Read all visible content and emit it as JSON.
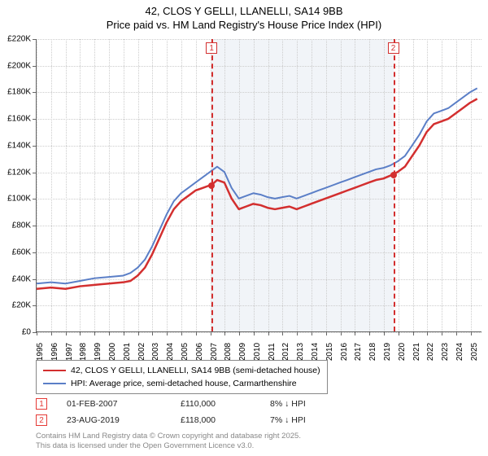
{
  "title": {
    "line1": "42, CLOS Y GELLI, LLANELLI, SA14 9BB",
    "line2": "Price paid vs. HM Land Registry's House Price Index (HPI)"
  },
  "chart": {
    "type": "line",
    "x_years": [
      1995,
      1996,
      1997,
      1998,
      1999,
      2000,
      2001,
      2002,
      2003,
      2004,
      2005,
      2006,
      2007,
      2008,
      2009,
      2010,
      2011,
      2012,
      2013,
      2014,
      2015,
      2016,
      2017,
      2018,
      2019,
      2020,
      2021,
      2022,
      2023,
      2024,
      2025
    ],
    "xlim": [
      1995,
      2025.8
    ],
    "ylim": [
      0,
      220000
    ],
    "ytick_step": 20000,
    "y_prefix": "£",
    "y_suffix": "K",
    "y_divisor": 1000,
    "background_color": "#ffffff",
    "grid_color": "#cccccc",
    "band_color": "#e8ecf4",
    "band": {
      "start": 2007.09,
      "end": 2019.65
    },
    "series": [
      {
        "name": "42, CLOS Y GELLI, LLANELLI, SA14 9BB (semi-detached house)",
        "color": "#d32f2f",
        "width": 2.5,
        "data": [
          [
            1995,
            32000
          ],
          [
            1996,
            33000
          ],
          [
            1997,
            32000
          ],
          [
            1998,
            34000
          ],
          [
            1999,
            35000
          ],
          [
            2000,
            36000
          ],
          [
            2001,
            37000
          ],
          [
            2001.5,
            38000
          ],
          [
            2002,
            42000
          ],
          [
            2002.5,
            48000
          ],
          [
            2003,
            58000
          ],
          [
            2003.5,
            70000
          ],
          [
            2004,
            82000
          ],
          [
            2004.5,
            92000
          ],
          [
            2005,
            98000
          ],
          [
            2005.5,
            102000
          ],
          [
            2006,
            106000
          ],
          [
            2006.5,
            108000
          ],
          [
            2007,
            110000
          ],
          [
            2007.09,
            110000
          ],
          [
            2007.5,
            114000
          ],
          [
            2008,
            112000
          ],
          [
            2008.5,
            100000
          ],
          [
            2009,
            92000
          ],
          [
            2009.5,
            94000
          ],
          [
            2010,
            96000
          ],
          [
            2010.5,
            95000
          ],
          [
            2011,
            93000
          ],
          [
            2011.5,
            92000
          ],
          [
            2012,
            93000
          ],
          [
            2012.5,
            94000
          ],
          [
            2013,
            92000
          ],
          [
            2013.5,
            94000
          ],
          [
            2014,
            96000
          ],
          [
            2014.5,
            98000
          ],
          [
            2015,
            100000
          ],
          [
            2015.5,
            102000
          ],
          [
            2016,
            104000
          ],
          [
            2016.5,
            106000
          ],
          [
            2017,
            108000
          ],
          [
            2017.5,
            110000
          ],
          [
            2018,
            112000
          ],
          [
            2018.5,
            114000
          ],
          [
            2019,
            115000
          ],
          [
            2019.65,
            118000
          ],
          [
            2020,
            120000
          ],
          [
            2020.5,
            124000
          ],
          [
            2021,
            132000
          ],
          [
            2021.5,
            140000
          ],
          [
            2022,
            150000
          ],
          [
            2022.5,
            156000
          ],
          [
            2023,
            158000
          ],
          [
            2023.5,
            160000
          ],
          [
            2024,
            164000
          ],
          [
            2024.5,
            168000
          ],
          [
            2025,
            172000
          ],
          [
            2025.5,
            175000
          ]
        ]
      },
      {
        "name": "HPI: Average price, semi-detached house, Carmarthenshire",
        "color": "#5b7fc7",
        "width": 2,
        "data": [
          [
            1995,
            36000
          ],
          [
            1996,
            37000
          ],
          [
            1997,
            36000
          ],
          [
            1998,
            38000
          ],
          [
            1999,
            40000
          ],
          [
            2000,
            41000
          ],
          [
            2001,
            42000
          ],
          [
            2001.5,
            44000
          ],
          [
            2002,
            48000
          ],
          [
            2002.5,
            54000
          ],
          [
            2003,
            64000
          ],
          [
            2003.5,
            76000
          ],
          [
            2004,
            88000
          ],
          [
            2004.5,
            98000
          ],
          [
            2005,
            104000
          ],
          [
            2005.5,
            108000
          ],
          [
            2006,
            112000
          ],
          [
            2006.5,
            116000
          ],
          [
            2007,
            120000
          ],
          [
            2007.5,
            124000
          ],
          [
            2008,
            120000
          ],
          [
            2008.5,
            108000
          ],
          [
            2009,
            100000
          ],
          [
            2009.5,
            102000
          ],
          [
            2010,
            104000
          ],
          [
            2010.5,
            103000
          ],
          [
            2011,
            101000
          ],
          [
            2011.5,
            100000
          ],
          [
            2012,
            101000
          ],
          [
            2012.5,
            102000
          ],
          [
            2013,
            100000
          ],
          [
            2013.5,
            102000
          ],
          [
            2014,
            104000
          ],
          [
            2014.5,
            106000
          ],
          [
            2015,
            108000
          ],
          [
            2015.5,
            110000
          ],
          [
            2016,
            112000
          ],
          [
            2016.5,
            114000
          ],
          [
            2017,
            116000
          ],
          [
            2017.5,
            118000
          ],
          [
            2018,
            120000
          ],
          [
            2018.5,
            122000
          ],
          [
            2019,
            123000
          ],
          [
            2019.5,
            125000
          ],
          [
            2020,
            128000
          ],
          [
            2020.5,
            132000
          ],
          [
            2021,
            140000
          ],
          [
            2021.5,
            148000
          ],
          [
            2022,
            158000
          ],
          [
            2022.5,
            164000
          ],
          [
            2023,
            166000
          ],
          [
            2023.5,
            168000
          ],
          [
            2024,
            172000
          ],
          [
            2024.5,
            176000
          ],
          [
            2025,
            180000
          ],
          [
            2025.5,
            183000
          ]
        ]
      }
    ],
    "sale_markers": [
      {
        "n": "1",
        "x": 2007.09,
        "y": 110000,
        "color": "#d32f2f"
      },
      {
        "n": "2",
        "x": 2019.65,
        "y": 118000,
        "color": "#d32f2f"
      }
    ]
  },
  "legend": {
    "items": [
      {
        "color": "#d32f2f",
        "label": "42, CLOS Y GELLI, LLANELLI, SA14 9BB (semi-detached house)"
      },
      {
        "color": "#5b7fc7",
        "label": "HPI: Average price, semi-detached house, Carmarthenshire"
      }
    ]
  },
  "sales": [
    {
      "n": "1",
      "date": "01-FEB-2007",
      "price": "£110,000",
      "delta": "8% ↓ HPI"
    },
    {
      "n": "2",
      "date": "23-AUG-2019",
      "price": "£118,000",
      "delta": "7% ↓ HPI"
    }
  ],
  "footer": {
    "line1": "Contains HM Land Registry data © Crown copyright and database right 2025.",
    "line2": "This data is licensed under the Open Government Licence v3.0."
  }
}
